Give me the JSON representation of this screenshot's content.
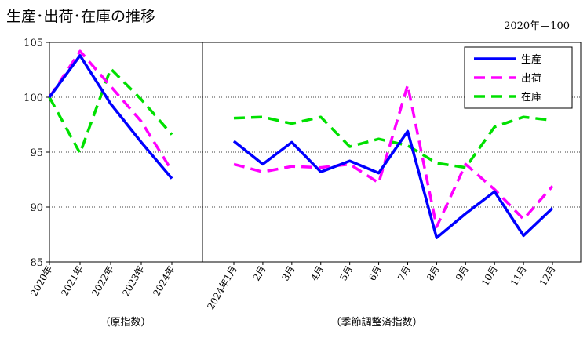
{
  "title": "生産･出荷･在庫の推移",
  "note": "2020年＝100",
  "chart_data": {
    "type": "line",
    "ylim": [
      85,
      105
    ],
    "yticks": [
      85,
      90,
      95,
      100,
      105
    ],
    "grid": "horizontal dotted",
    "legend_position": "top-right",
    "groups": [
      {
        "label": "（原指数）",
        "categories": [
          "2020年",
          "2021年",
          "2022年",
          "2023年",
          "2024年"
        ],
        "series": [
          {
            "name": "生産",
            "values": [
              100.0,
              103.8,
              99.4,
              95.9,
              92.6
            ]
          },
          {
            "name": "出荷",
            "values": [
              100.0,
              104.2,
              101.0,
              97.8,
              93.3
            ]
          },
          {
            "name": "在庫",
            "values": [
              100.0,
              94.9,
              102.6,
              99.8,
              96.6
            ]
          }
        ]
      },
      {
        "label": "（季節調整済指数）",
        "categories": [
          "2024年1月",
          "2月",
          "3月",
          "4月",
          "5月",
          "6月",
          "7月",
          "8月",
          "9月",
          "10月",
          "11月",
          "12月"
        ],
        "series": [
          {
            "name": "生産",
            "values": [
              96.0,
              93.9,
              95.9,
              93.2,
              94.2,
              93.1,
              96.9,
              87.2,
              89.4,
              91.4,
              87.4,
              89.9
            ]
          },
          {
            "name": "出荷",
            "values": [
              93.9,
              93.2,
              93.7,
              93.6,
              93.9,
              92.2,
              101.1,
              88.2,
              93.9,
              91.6,
              88.9,
              91.9
            ]
          },
          {
            "name": "在庫",
            "values": [
              98.1,
              98.2,
              97.6,
              98.2,
              95.5,
              96.2,
              95.6,
              94.0,
              93.6,
              97.3,
              98.2,
              97.9
            ]
          }
        ]
      }
    ],
    "styles": {
      "生産": {
        "color": "#0000ff",
        "dash": "solid"
      },
      "出荷": {
        "color": "#ff00ff",
        "dash": "dashed"
      },
      "在庫": {
        "color": "#00e000",
        "dash": "dashed"
      }
    }
  }
}
